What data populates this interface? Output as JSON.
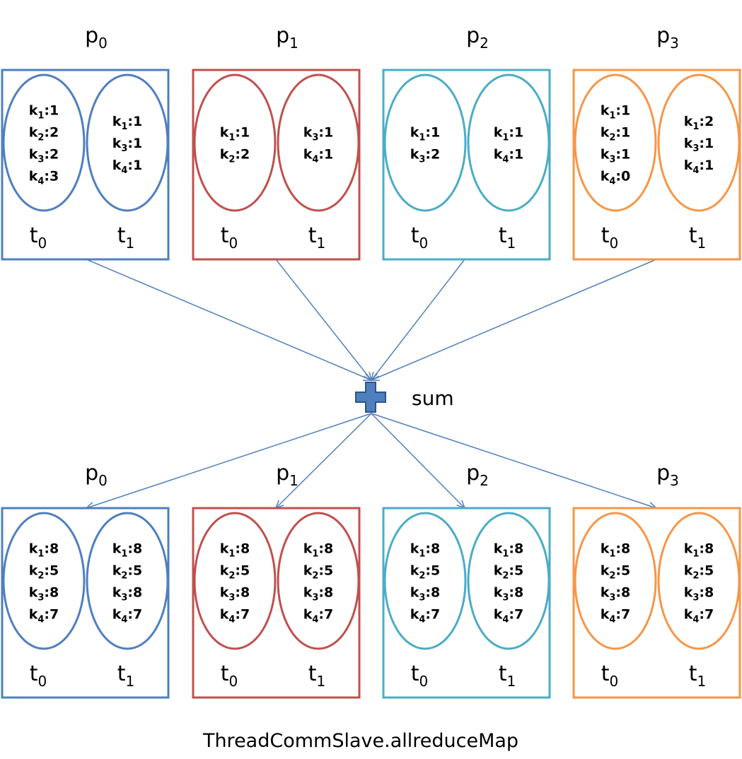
{
  "colors": {
    "p0": "#4f7fbf",
    "p1": "#c0504d",
    "p2": "#4bacc6",
    "p3": "#f79646",
    "arrow": "#4f7fbf",
    "plus_fill": "#4f7fbf",
    "plus_stroke": "#2c5488"
  },
  "sum": {
    "icon": "plus-icon",
    "label": "sum"
  },
  "caption": "ThreadCommSlave.allreduceMap",
  "top_row": [
    {
      "process": "p",
      "process_sub": "0",
      "color_key": "p0",
      "threads": [
        {
          "name": "t",
          "sub": "0",
          "entries": [
            {
              "k": "k",
              "sub": "1",
              "v": ":1"
            },
            {
              "k": "k",
              "sub": "2",
              "v": ":2"
            },
            {
              "k": "k",
              "sub": "3",
              "v": ":2"
            },
            {
              "k": "k",
              "sub": "4",
              "v": ":3"
            }
          ]
        },
        {
          "name": "t",
          "sub": "1",
          "entries": [
            {
              "k": "k",
              "sub": "1",
              "v": ":1"
            },
            {
              "k": "k",
              "sub": "3",
              "v": ":1"
            },
            {
              "k": "k",
              "sub": "4",
              "v": ":1"
            }
          ]
        }
      ]
    },
    {
      "process": "p",
      "process_sub": "1",
      "color_key": "p1",
      "threads": [
        {
          "name": "t",
          "sub": "0",
          "entries": [
            {
              "k": "k",
              "sub": "1",
              "v": ":1"
            },
            {
              "k": "k",
              "sub": "2",
              "v": ":2"
            }
          ]
        },
        {
          "name": "t",
          "sub": "1",
          "entries": [
            {
              "k": "k",
              "sub": "3",
              "v": ":1"
            },
            {
              "k": "k",
              "sub": "4",
              "v": ":1"
            }
          ]
        }
      ]
    },
    {
      "process": "p",
      "process_sub": "2",
      "color_key": "p2",
      "threads": [
        {
          "name": "t",
          "sub": "0",
          "entries": [
            {
              "k": "k",
              "sub": "1",
              "v": ":1"
            },
            {
              "k": "k",
              "sub": "3",
              "v": ":2"
            }
          ]
        },
        {
          "name": "t",
          "sub": "1",
          "entries": [
            {
              "k": "k",
              "sub": "1",
              "v": ":1"
            },
            {
              "k": "k",
              "sub": "4",
              "v": ":1"
            }
          ]
        }
      ]
    },
    {
      "process": "p",
      "process_sub": "3",
      "color_key": "p3",
      "threads": [
        {
          "name": "t",
          "sub": "0",
          "entries": [
            {
              "k": "k",
              "sub": "1",
              "v": ":1"
            },
            {
              "k": "k",
              "sub": "2",
              "v": ":1"
            },
            {
              "k": "k",
              "sub": "3",
              "v": ":1"
            },
            {
              "k": "k",
              "sub": "4",
              "v": ":0"
            }
          ]
        },
        {
          "name": "t",
          "sub": "1",
          "entries": [
            {
              "k": "k",
              "sub": "1",
              "v": ":2"
            },
            {
              "k": "k",
              "sub": "3",
              "v": ":1"
            },
            {
              "k": "k",
              "sub": "4",
              "v": ":1"
            }
          ]
        }
      ]
    }
  ],
  "bottom_row": [
    {
      "process": "p",
      "process_sub": "0",
      "color_key": "p0",
      "threads": [
        {
          "name": "t",
          "sub": "0",
          "entries": [
            {
              "k": "k",
              "sub": "1",
              "v": ":8"
            },
            {
              "k": "k",
              "sub": "2",
              "v": ":5"
            },
            {
              "k": "k",
              "sub": "3",
              "v": ":8"
            },
            {
              "k": "k",
              "sub": "4",
              "v": ":7"
            }
          ]
        },
        {
          "name": "t",
          "sub": "1",
          "entries": [
            {
              "k": "k",
              "sub": "1",
              "v": ":8"
            },
            {
              "k": "k",
              "sub": "2",
              "v": ":5"
            },
            {
              "k": "k",
              "sub": "3",
              "v": ":8"
            },
            {
              "k": "k",
              "sub": "4",
              "v": ":7"
            }
          ]
        }
      ]
    },
    {
      "process": "p",
      "process_sub": "1",
      "color_key": "p1",
      "threads": [
        {
          "name": "t",
          "sub": "0",
          "entries": [
            {
              "k": "k",
              "sub": "1",
              "v": ":8"
            },
            {
              "k": "k",
              "sub": "2",
              "v": ":5"
            },
            {
              "k": "k",
              "sub": "3",
              "v": ":8"
            },
            {
              "k": "k",
              "sub": "4",
              "v": ":7"
            }
          ]
        },
        {
          "name": "t",
          "sub": "1",
          "entries": [
            {
              "k": "k",
              "sub": "1",
              "v": ":8"
            },
            {
              "k": "k",
              "sub": "2",
              "v": ":5"
            },
            {
              "k": "k",
              "sub": "3",
              "v": ":8"
            },
            {
              "k": "k",
              "sub": "4",
              "v": ":7"
            }
          ]
        }
      ]
    },
    {
      "process": "p",
      "process_sub": "2",
      "color_key": "p2",
      "threads": [
        {
          "name": "t",
          "sub": "0",
          "entries": [
            {
              "k": "k",
              "sub": "1",
              "v": ":8"
            },
            {
              "k": "k",
              "sub": "2",
              "v": ":5"
            },
            {
              "k": "k",
              "sub": "3",
              "v": ":8"
            },
            {
              "k": "k",
              "sub": "4",
              "v": ":7"
            }
          ]
        },
        {
          "name": "t",
          "sub": "1",
          "entries": [
            {
              "k": "k",
              "sub": "1",
              "v": ":8"
            },
            {
              "k": "k",
              "sub": "2",
              "v": ":5"
            },
            {
              "k": "k",
              "sub": "3",
              "v": ":8"
            },
            {
              "k": "k",
              "sub": "4",
              "v": ":7"
            }
          ]
        }
      ]
    },
    {
      "process": "p",
      "process_sub": "3",
      "color_key": "p3",
      "threads": [
        {
          "name": "t",
          "sub": "0",
          "entries": [
            {
              "k": "k",
              "sub": "1",
              "v": ":8"
            },
            {
              "k": "k",
              "sub": "2",
              "v": ":5"
            },
            {
              "k": "k",
              "sub": "3",
              "v": ":8"
            },
            {
              "k": "k",
              "sub": "4",
              "v": ":7"
            }
          ]
        },
        {
          "name": "t",
          "sub": "1",
          "entries": [
            {
              "k": "k",
              "sub": "1",
              "v": ":8"
            },
            {
              "k": "k",
              "sub": "2",
              "v": ":5"
            },
            {
              "k": "k",
              "sub": "3",
              "v": ":8"
            },
            {
              "k": "k",
              "sub": "4",
              "v": ":7"
            }
          ]
        }
      ]
    }
  ]
}
